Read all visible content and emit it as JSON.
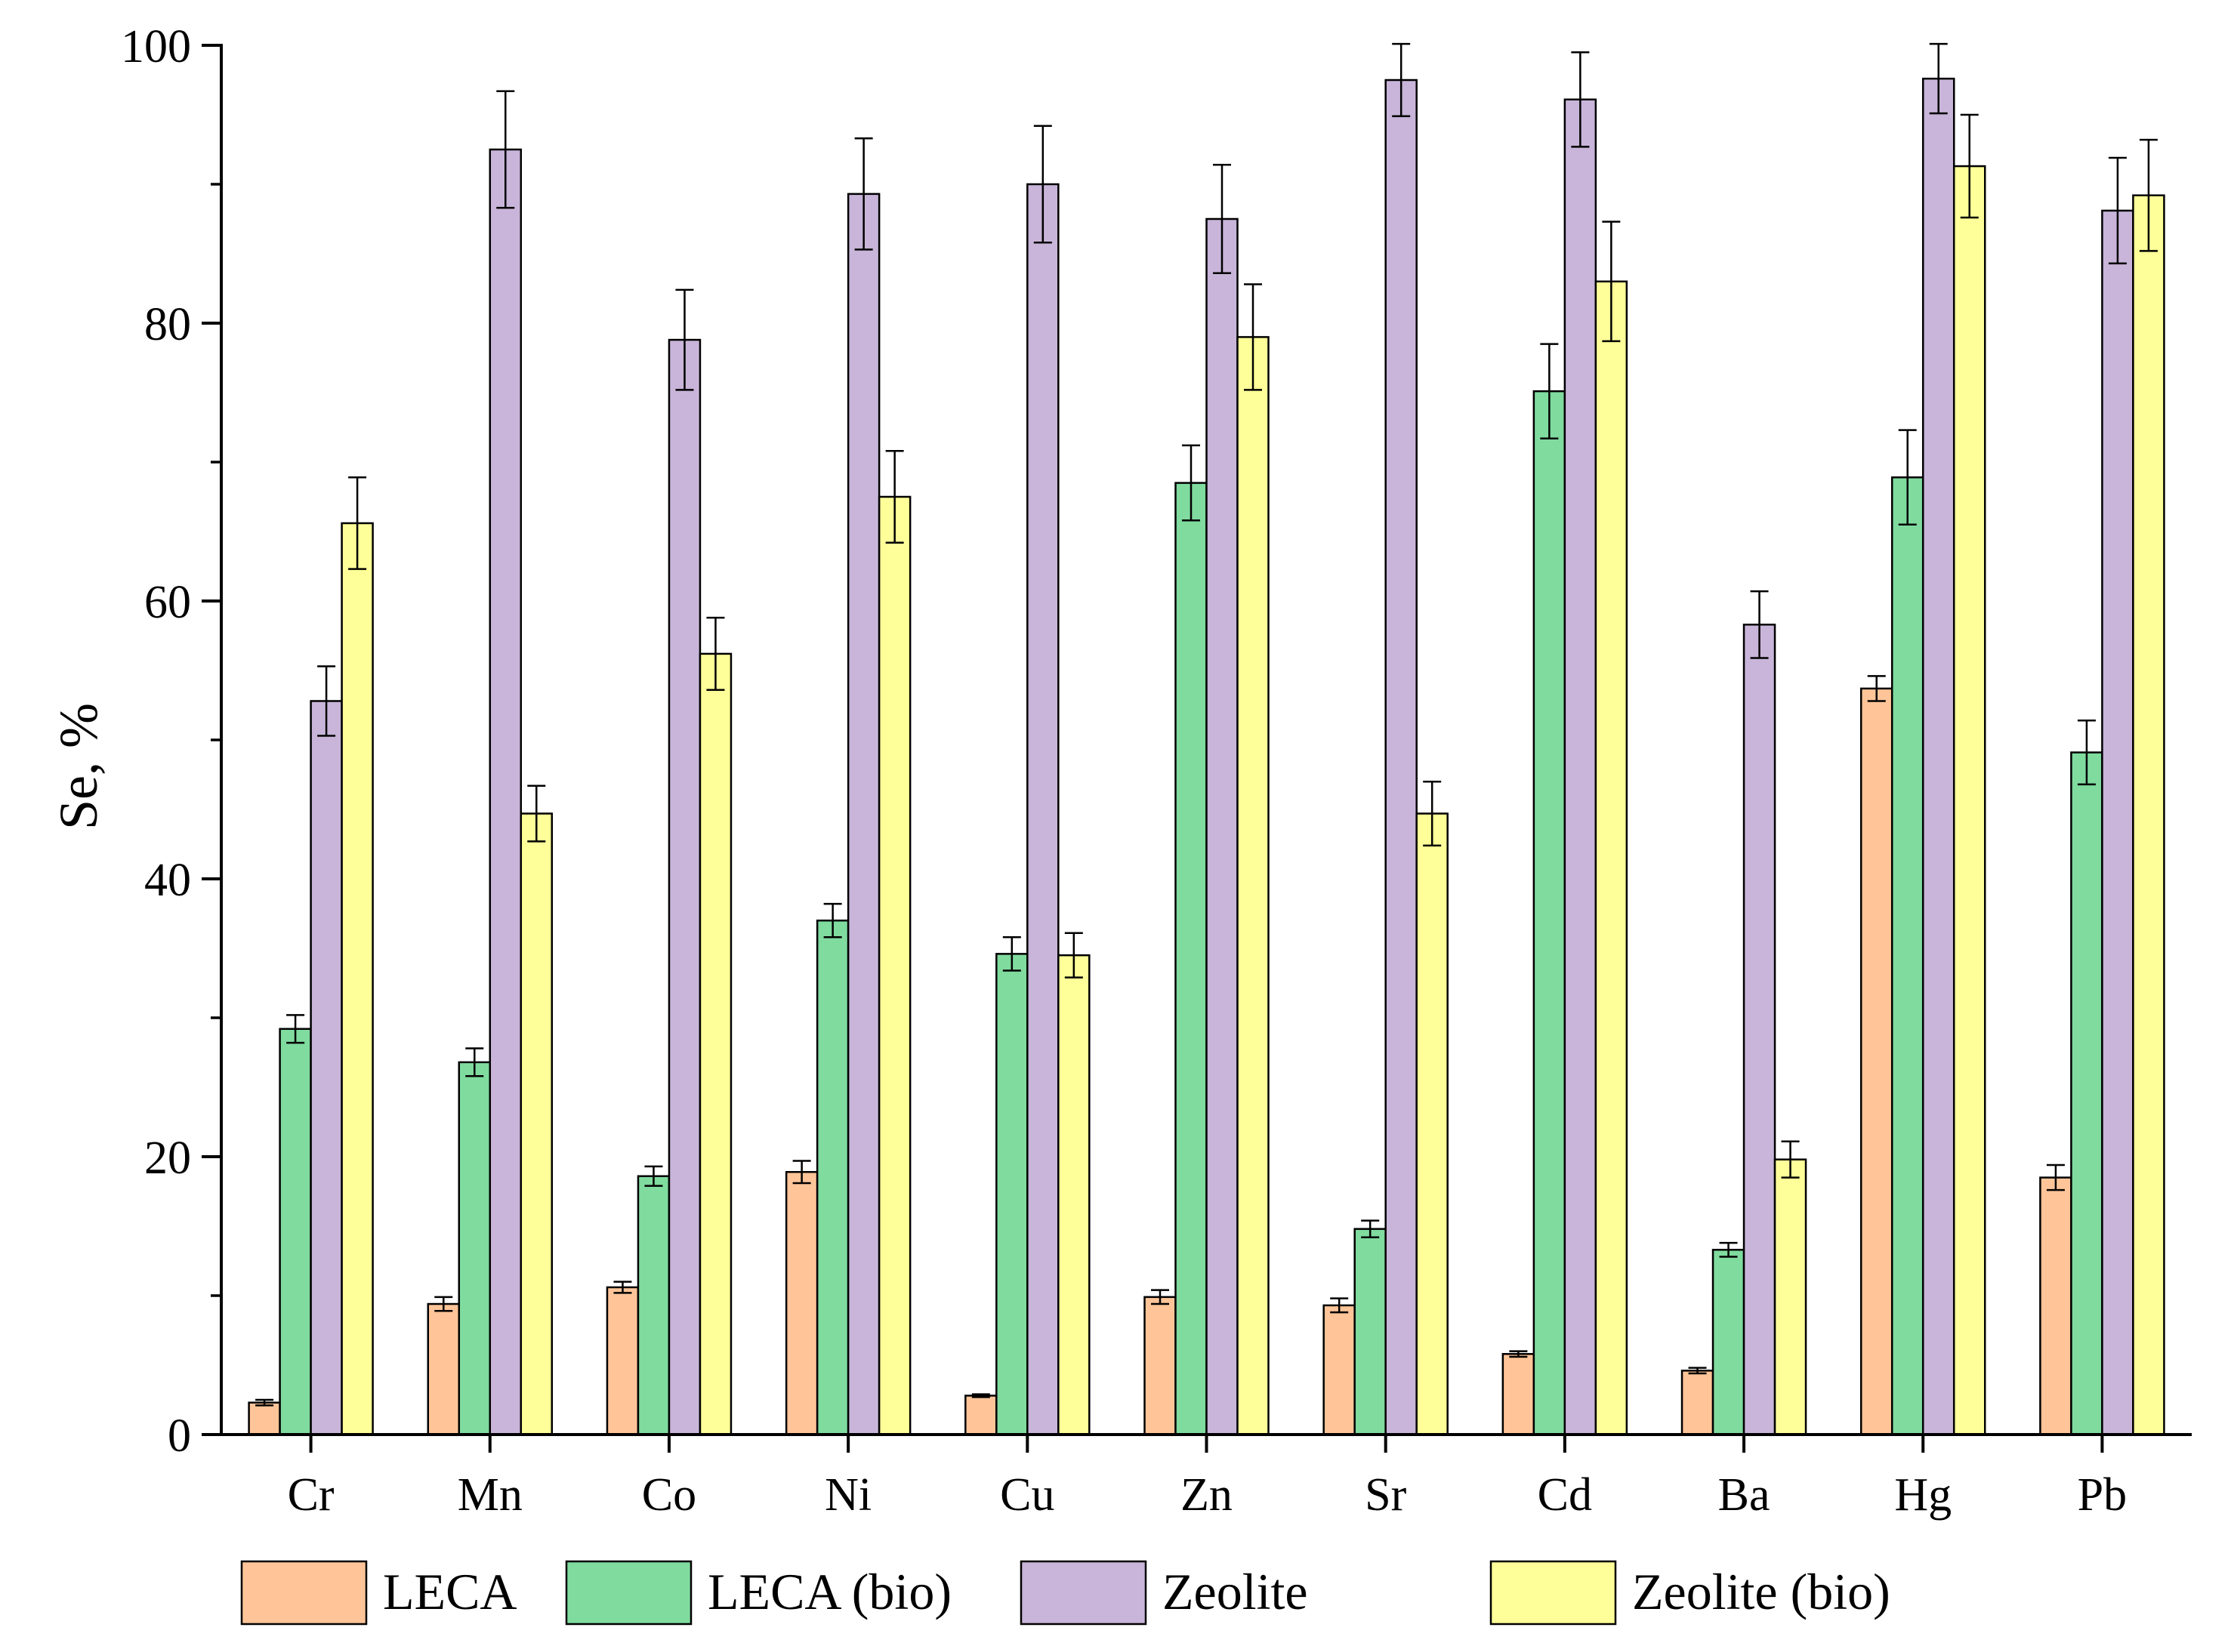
{
  "chart_data": {
    "type": "bar",
    "title": "",
    "xlabel": "",
    "ylabel": "Se, %",
    "ylim": [
      0,
      100
    ],
    "yticks": [
      0,
      20,
      40,
      60,
      80,
      100
    ],
    "yticks_minor": [
      10,
      30,
      50,
      70,
      90
    ],
    "grid": false,
    "legend_position": "bottom",
    "categories": [
      "Cr",
      "Mn",
      "Co",
      "Ni",
      "Cu",
      "Zn",
      "Sr",
      "Cd",
      "Ba",
      "Hg",
      "Pb"
    ],
    "series": [
      {
        "name": "LECA",
        "color": "#FFC599",
        "values": [
          2.3,
          9.4,
          10.6,
          18.9,
          2.8,
          9.9,
          9.3,
          5.8,
          4.6,
          53.7,
          18.5
        ],
        "errors": [
          0.2,
          0.5,
          0.4,
          0.8,
          0.1,
          0.5,
          0.5,
          0.2,
          0.2,
          0.9,
          0.9
        ]
      },
      {
        "name": "LECA (bio)",
        "color": "#80DB9F",
        "values": [
          29.2,
          26.8,
          18.6,
          37.0,
          34.6,
          68.5,
          14.8,
          75.1,
          13.3,
          68.9,
          49.1
        ],
        "errors": [
          1.0,
          1.0,
          0.7,
          1.2,
          1.2,
          2.7,
          0.6,
          3.4,
          0.5,
          3.4,
          2.3
        ]
      },
      {
        "name": "Zeolite",
        "color": "#C9B5D9",
        "values": [
          52.8,
          92.5,
          78.8,
          89.3,
          90.0,
          87.5,
          97.5,
          96.1,
          58.3,
          97.6,
          88.1
        ],
        "errors": [
          2.5,
          4.2,
          3.6,
          4.0,
          4.2,
          3.9,
          2.6,
          3.4,
          2.4,
          2.5,
          3.8
        ]
      },
      {
        "name": "Zeolite (bio)",
        "color": "#FFFF99",
        "values": [
          65.6,
          44.7,
          56.2,
          67.5,
          34.5,
          79.0,
          44.7,
          83.0,
          19.8,
          91.3,
          89.2
        ],
        "errors": [
          3.3,
          2.0,
          2.6,
          3.3,
          1.6,
          3.8,
          2.3,
          4.3,
          1.3,
          3.7,
          4.0
        ]
      }
    ]
  }
}
